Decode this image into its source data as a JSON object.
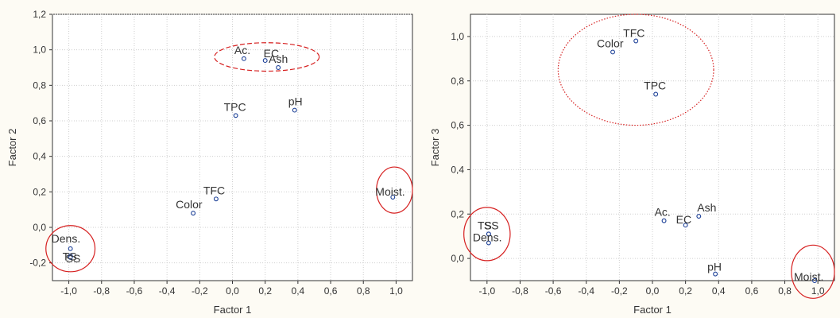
{
  "chart_data": [
    {
      "type": "scatter",
      "xlabel": "Factor 1",
      "ylabel": "Factor 2",
      "xlim": [
        -1.1,
        1.1
      ],
      "ylim": [
        -0.3,
        1.2
      ],
      "xticks": [
        -1.0,
        -0.8,
        -0.6,
        -0.4,
        -0.2,
        0.0,
        0.2,
        0.4,
        0.6,
        0.8,
        1.0
      ],
      "xtick_labels": [
        "-1,0",
        "-0,8",
        "-0,6",
        "-0,4",
        "-0,2",
        "0,0",
        "0,2",
        "0,4",
        "0,6",
        "0,8",
        "1,0"
      ],
      "yticks": [
        -0.2,
        0.0,
        0.2,
        0.4,
        0.6,
        0.8,
        1.0,
        1.2
      ],
      "ytick_labels": [
        "-0,2",
        "0,0",
        "0,2",
        "0,4",
        "0,6",
        "0,8",
        "1,0",
        "1,2"
      ],
      "grid": true,
      "points": [
        {
          "label": "Ac.",
          "x": 0.07,
          "y": 0.95
        },
        {
          "label": "EC",
          "x": 0.2,
          "y": 0.94
        },
        {
          "label": "Ash",
          "x": 0.28,
          "y": 0.9
        },
        {
          "label": "TPC",
          "x": 0.02,
          "y": 0.63
        },
        {
          "label": "pH",
          "x": 0.38,
          "y": 0.66
        },
        {
          "label": "TFC",
          "x": -0.1,
          "y": 0.16
        },
        {
          "label": "Color",
          "x": -0.24,
          "y": 0.08
        },
        {
          "label": "Moist.",
          "x": 0.98,
          "y": 0.17
        },
        {
          "label": "Dens.",
          "x": -0.99,
          "y": -0.12
        },
        {
          "label": "TS",
          "x": -0.99,
          "y": -0.16
        },
        {
          "label": "SS",
          "x": -0.99,
          "y": -0.17
        }
      ],
      "ellipses": [
        {
          "cx": 0.21,
          "cy": 0.96,
          "rx": 0.32,
          "ry": 0.08,
          "style": "dashed"
        },
        {
          "cx": 0.99,
          "cy": 0.21,
          "rx": 0.11,
          "ry": 0.13,
          "style": "solid"
        },
        {
          "cx": -0.99,
          "cy": -0.12,
          "rx": 0.15,
          "ry": 0.13,
          "style": "solid"
        }
      ]
    },
    {
      "type": "scatter",
      "xlabel": "Factor 1",
      "ylabel": "Factor 3",
      "xlim": [
        -1.1,
        1.1
      ],
      "ylim": [
        -0.1,
        1.1
      ],
      "xticks": [
        -1.0,
        -0.8,
        -0.6,
        -0.4,
        -0.2,
        0.0,
        0.2,
        0.4,
        0.6,
        0.8,
        1.0
      ],
      "xtick_labels": [
        "-1,0",
        "-0,8",
        "-0,6",
        "-0,4",
        "-0,2",
        "0,0",
        "0,2",
        "0,4",
        "0,6",
        "0,8",
        "1,0"
      ],
      "yticks": [
        0.0,
        0.2,
        0.4,
        0.6,
        0.8,
        1.0
      ],
      "ytick_labels": [
        "0,0",
        "0,2",
        "0,4",
        "0,6",
        "0,8",
        "1,0"
      ],
      "grid": true,
      "points": [
        {
          "label": "TFC",
          "x": -0.1,
          "y": 0.98
        },
        {
          "label": "Color",
          "x": -0.24,
          "y": 0.93
        },
        {
          "label": "TPC",
          "x": 0.02,
          "y": 0.74
        },
        {
          "label": "Ac.",
          "x": 0.07,
          "y": 0.17
        },
        {
          "label": "EC",
          "x": 0.2,
          "y": 0.15
        },
        {
          "label": "Ash",
          "x": 0.28,
          "y": 0.19
        },
        {
          "label": "pH",
          "x": 0.38,
          "y": -0.07
        },
        {
          "label": "Moist.",
          "x": 0.98,
          "y": -0.1
        },
        {
          "label": "TS",
          "x": -0.99,
          "y": 0.11
        },
        {
          "label": "SS",
          "x": -0.99,
          "y": 0.11
        },
        {
          "label": "Dens.",
          "x": -0.99,
          "y": 0.07
        }
      ],
      "ellipses": [
        {
          "cx": -0.1,
          "cy": 0.85,
          "rx": 0.47,
          "ry": 0.25,
          "style": "dotted"
        },
        {
          "cx": -1.0,
          "cy": 0.11,
          "rx": 0.14,
          "ry": 0.12,
          "style": "solid"
        },
        {
          "cx": 0.97,
          "cy": -0.06,
          "rx": 0.13,
          "ry": 0.12,
          "style": "solid"
        }
      ]
    }
  ]
}
